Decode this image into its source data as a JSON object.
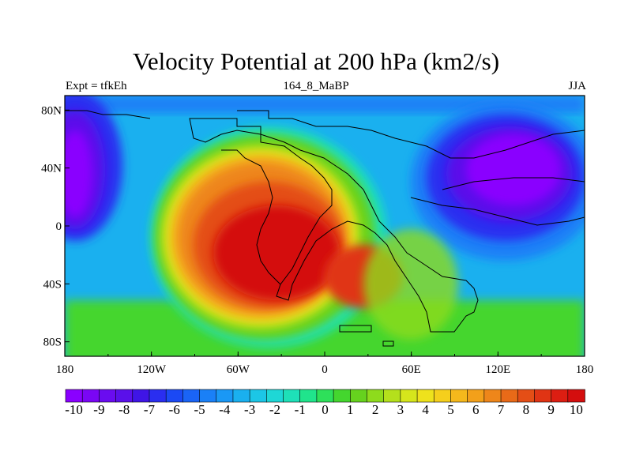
{
  "figure": {
    "title": "Velocity Potential at 200 hPa (km2/s)",
    "left_label": "Expt = tfkEh",
    "center_label": "164_8_MaBP",
    "right_label": "JJA"
  },
  "map": {
    "lon_ticks": [
      "180",
      "120W",
      "60W",
      "0",
      "60E",
      "120E",
      "180"
    ],
    "lat_ticks": [
      "80N",
      "40N",
      "0",
      "40S",
      "80S"
    ],
    "lon_range": [
      -180,
      180
    ],
    "lat_range": [
      -90,
      90
    ],
    "field_centers": {
      "high": {
        "lon": -35,
        "lat": -15,
        "value": 10
      },
      "low_west": {
        "lon": -175,
        "lat": 35,
        "value": -10
      },
      "low_east": {
        "lon": 150,
        "lat": 30,
        "value": -10
      }
    }
  },
  "colorbar": {
    "labels": [
      "-10",
      "-9",
      "-8",
      "-7",
      "-6",
      "-5",
      "-4",
      "-3",
      "-2",
      "-1",
      "0",
      "1",
      "2",
      "3",
      "4",
      "5",
      "6",
      "7",
      "8",
      "9",
      "10"
    ],
    "colors": [
      "#8a00ff",
      "#7a06f5",
      "#6a0cf0",
      "#5a10ea",
      "#3f15e6",
      "#2a2ef0",
      "#1b49f4",
      "#1a64f6",
      "#1a80f7",
      "#1a98f5",
      "#1ab0ef",
      "#1cc6e6",
      "#1ed7d6",
      "#1ee0b8",
      "#20e48c",
      "#2ee05a",
      "#44d62e",
      "#66d21e",
      "#8edb1c",
      "#b4e01c",
      "#d6e61c",
      "#eee21c",
      "#f5cf1c",
      "#f5b81c",
      "#f3a01a",
      "#ee861a",
      "#e96a18",
      "#e44e16",
      "#e03414",
      "#dc1e12",
      "#d40e0e"
    ]
  }
}
